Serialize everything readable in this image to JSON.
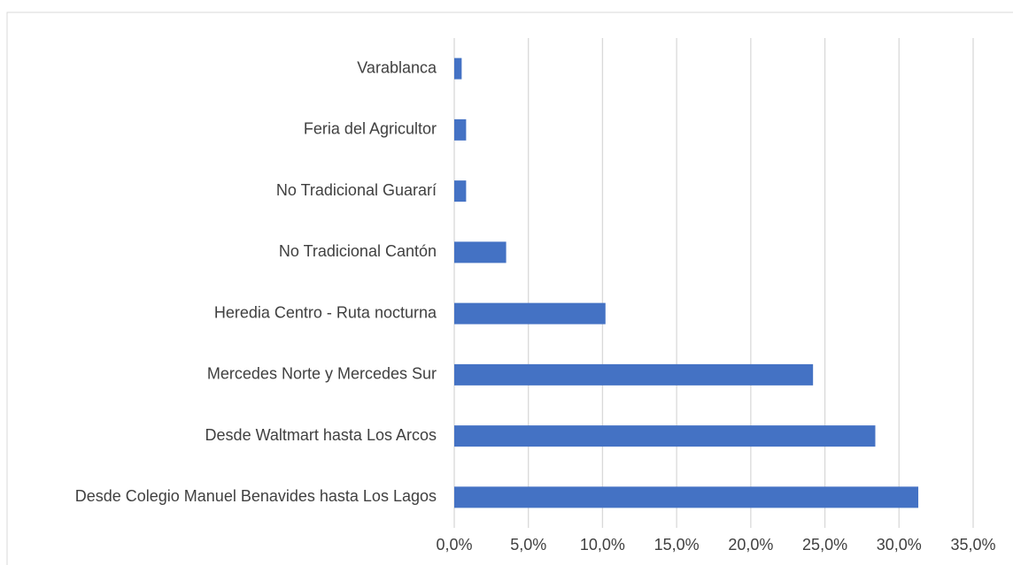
{
  "chart_data": {
    "type": "hbar",
    "categories": [
      "Varablanca",
      "Feria del Agricultor",
      "No Tradicional Guararí",
      "No Tradicional Cantón",
      "Heredia Centro - Ruta nocturna",
      "Mercedes Norte y Mercedes Sur",
      "Desde Waltmart hasta Los Arcos",
      "Desde Colegio Manuel Benavides hasta Los Lagos"
    ],
    "values": [
      0.5,
      0.8,
      0.8,
      3.5,
      10.2,
      24.2,
      28.4,
      31.3
    ],
    "color": "#4472c4",
    "xlim": [
      0,
      35
    ],
    "xticks": [
      {
        "value": 0,
        "label": "0,0%"
      },
      {
        "value": 5,
        "label": "5,0%"
      },
      {
        "value": 10,
        "label": "10,0%"
      },
      {
        "value": 15,
        "label": "15,0%"
      },
      {
        "value": 20,
        "label": "20,0%"
      },
      {
        "value": 25,
        "label": "25,0%"
      },
      {
        "value": 30,
        "label": "30,0%"
      },
      {
        "value": 35,
        "label": "35,0%"
      }
    ],
    "grid": true
  }
}
